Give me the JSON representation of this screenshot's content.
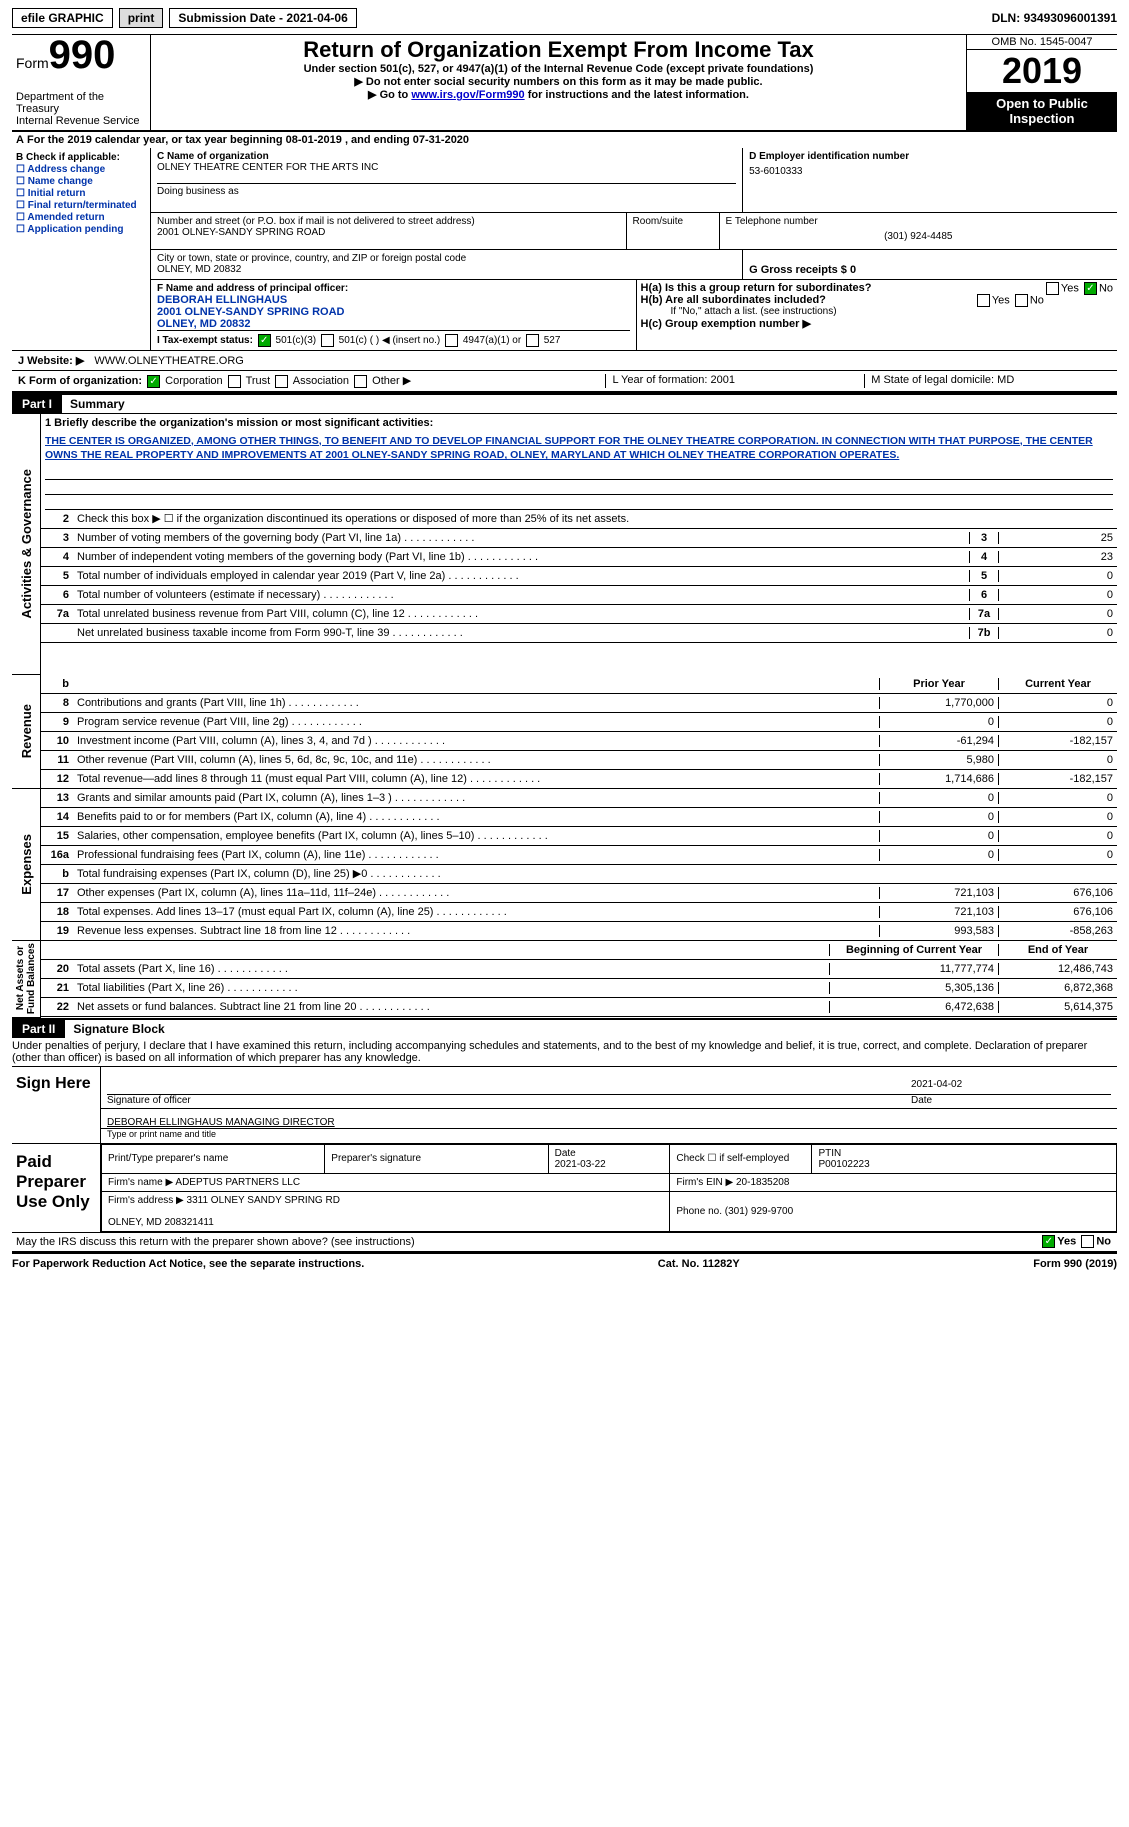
{
  "topbar": {
    "efile": "efile GRAPHIC",
    "print": "print",
    "subdate_label": "Submission Date - ",
    "subdate": "2021-04-06",
    "dln_label": "DLN: ",
    "dln": "93493096001391"
  },
  "header": {
    "form_label": "Form",
    "form_num": "990",
    "dept": "Department of the Treasury\nInternal Revenue Service",
    "title": "Return of Organization Exempt From Income Tax",
    "sub1": "Under section 501(c), 527, or 4947(a)(1) of the Internal Revenue Code (except private foundations)",
    "sub2": "▶ Do not enter social security numbers on this form as it may be made public.",
    "sub3_pre": "▶ Go to ",
    "sub3_link": "www.irs.gov/Form990",
    "sub3_post": " for instructions and the latest information.",
    "omb": "OMB No. 1545-0047",
    "year": "2019",
    "inspect": "Open to Public Inspection"
  },
  "A_year": "For the 2019 calendar year, or tax year beginning 08-01-2019   , and ending 07-31-2020",
  "B": {
    "label": "B Check if applicable:",
    "items": [
      "Address change",
      "Name change",
      "Initial return",
      "Final return/terminated",
      "Amended return",
      "Application pending"
    ]
  },
  "C": {
    "name_label": "C Name of organization",
    "name": "OLNEY THEATRE CENTER FOR THE ARTS INC",
    "dba_label": "Doing business as",
    "addr_label": "Number and street (or P.O. box if mail is not delivered to street address)",
    "room_label": "Room/suite",
    "addr": "2001 OLNEY-SANDY SPRING ROAD",
    "city_label": "City or town, state or province, country, and ZIP or foreign postal code",
    "city": "OLNEY, MD  20832"
  },
  "D": {
    "label": "D Employer identification number",
    "val": "53-6010333"
  },
  "E": {
    "label": "E Telephone number",
    "val": "(301) 924-4485"
  },
  "G": {
    "label": "G Gross receipts $ 0"
  },
  "F": {
    "label": "F Name and address of principal officer:",
    "name": "DEBORAH ELLINGHAUS",
    "addr1": "2001 OLNEY-SANDY SPRING ROAD",
    "addr2": "OLNEY, MD  20832"
  },
  "H": {
    "Ha": "H(a)  Is this a group return for subordinates?",
    "Hb": "H(b)  Are all subordinates included?",
    "Hb_note": "If \"No,\" attach a list. (see instructions)",
    "Hc": "H(c)  Group exemption number ▶",
    "yes": "Yes",
    "no": "No"
  },
  "I": {
    "label": "I   Tax-exempt status:",
    "opts": [
      "501(c)(3)",
      "501(c) (  ) ◀ (insert no.)",
      "4947(a)(1) or",
      "527"
    ]
  },
  "J": {
    "label": "J   Website: ▶",
    "val": "WWW.OLNEYTHEATRE.ORG",
    "link": "#"
  },
  "K": {
    "label": "K Form of organization:",
    "opts": [
      "Corporation",
      "Trust",
      "Association",
      "Other ▶"
    ]
  },
  "L": {
    "label": "L Year of formation: 2001"
  },
  "M": {
    "label": "M State of legal domicile: MD"
  },
  "part1": {
    "bar": "Part I",
    "title": "Summary"
  },
  "mission_label": "1   Briefly describe the organization's mission or most significant activities:",
  "mission": "THE CENTER IS ORGANIZED, AMONG OTHER THINGS, TO BENEFIT AND TO DEVELOP FINANCIAL SUPPORT FOR THE OLNEY THEATRE CORPORATION. IN CONNECTION WITH THAT PURPOSE, THE CENTER OWNS THE REAL PROPERTY AND IMPROVEMENTS AT 2001 OLNEY-SANDY SPRING ROAD, OLNEY, MARYLAND AT WHICH OLNEY THEATRE CORPORATION OPERATES.",
  "line2": "Check this box ▶ ☐  if the organization discontinued its operations or disposed of more than 25% of its net assets.",
  "vert": {
    "gov": "Activities & Governance",
    "rev": "Revenue",
    "exp": "Expenses",
    "net": "Net Assets or\nFund Balances"
  },
  "table1": [
    {
      "n": "3",
      "d": "Number of voting members of the governing body (Part VI, line 1a)",
      "c": "3",
      "v": "25"
    },
    {
      "n": "4",
      "d": "Number of independent voting members of the governing body (Part VI, line 1b)",
      "c": "4",
      "v": "23"
    },
    {
      "n": "5",
      "d": "Total number of individuals employed in calendar year 2019 (Part V, line 2a)",
      "c": "5",
      "v": "0"
    },
    {
      "n": "6",
      "d": "Total number of volunteers (estimate if necessary)",
      "c": "6",
      "v": "0"
    },
    {
      "n": "7a",
      "d": "Total unrelated business revenue from Part VIII, column (C), line 12",
      "c": "7a",
      "v": "0"
    },
    {
      "n": "",
      "d": "Net unrelated business taxable income from Form 990-T, line 39",
      "c": "7b",
      "v": "0"
    }
  ],
  "cols": {
    "prior": "Prior Year",
    "curr": "Current Year",
    "beg": "Beginning of Current Year",
    "end": "End of Year"
  },
  "revenue": [
    {
      "n": "8",
      "d": "Contributions and grants (Part VIII, line 1h)",
      "p": "1,770,000",
      "c": "0"
    },
    {
      "n": "9",
      "d": "Program service revenue (Part VIII, line 2g)",
      "p": "0",
      "c": "0"
    },
    {
      "n": "10",
      "d": "Investment income (Part VIII, column (A), lines 3, 4, and 7d )",
      "p": "-61,294",
      "c": "-182,157"
    },
    {
      "n": "11",
      "d": "Other revenue (Part VIII, column (A), lines 5, 6d, 8c, 9c, 10c, and 11e)",
      "p": "5,980",
      "c": "0"
    },
    {
      "n": "12",
      "d": "Total revenue—add lines 8 through 11 (must equal Part VIII, column (A), line 12)",
      "p": "1,714,686",
      "c": "-182,157"
    }
  ],
  "expenses": [
    {
      "n": "13",
      "d": "Grants and similar amounts paid (Part IX, column (A), lines 1–3 )",
      "p": "0",
      "c": "0"
    },
    {
      "n": "14",
      "d": "Benefits paid to or for members (Part IX, column (A), line 4)",
      "p": "0",
      "c": "0"
    },
    {
      "n": "15",
      "d": "Salaries, other compensation, employee benefits (Part IX, column (A), lines 5–10)",
      "p": "0",
      "c": "0"
    },
    {
      "n": "16a",
      "d": "Professional fundraising fees (Part IX, column (A), line 11e)",
      "p": "0",
      "c": "0"
    },
    {
      "n": "b",
      "d": "Total fundraising expenses (Part IX, column (D), line 25) ▶0",
      "p": "",
      "c": "",
      "grey": true
    },
    {
      "n": "17",
      "d": "Other expenses (Part IX, column (A), lines 11a–11d, 11f–24e)",
      "p": "721,103",
      "c": "676,106"
    },
    {
      "n": "18",
      "d": "Total expenses. Add lines 13–17 (must equal Part IX, column (A), line 25)",
      "p": "721,103",
      "c": "676,106"
    },
    {
      "n": "19",
      "d": "Revenue less expenses. Subtract line 18 from line 12",
      "p": "993,583",
      "c": "-858,263"
    }
  ],
  "netassets": [
    {
      "n": "20",
      "d": "Total assets (Part X, line 16)",
      "p": "11,777,774",
      "c": "12,486,743"
    },
    {
      "n": "21",
      "d": "Total liabilities (Part X, line 26)",
      "p": "5,305,136",
      "c": "6,872,368"
    },
    {
      "n": "22",
      "d": "Net assets or fund balances. Subtract line 21 from line 20",
      "p": "6,472,638",
      "c": "5,614,375"
    }
  ],
  "part2": {
    "bar": "Part II",
    "title": "Signature Block",
    "decl": "Under penalties of perjury, I declare that I have examined this return, including accompanying schedules and statements, and to the best of my knowledge and belief, it is true, correct, and complete. Declaration of preparer (other than officer) is based on all information of which preparer has any knowledge."
  },
  "sign": {
    "here": "Sign Here",
    "sig_label": "Signature of officer",
    "date_label": "Date",
    "sig_date": "2021-04-02",
    "name": "DEBORAH ELLINGHAUS  MANAGING DIRECTOR",
    "name_label": "Type or print name and title"
  },
  "paid": {
    "label": "Paid Preparer Use Only",
    "h1": "Print/Type preparer's name",
    "h2": "Preparer's signature",
    "h3_l": "Date",
    "h3": "2021-03-22",
    "h4": "Check ☐ if self-employed",
    "h5_l": "PTIN",
    "h5": "P00102223",
    "firm_l": "Firm's name   ▶",
    "firm": "ADEPTUS PARTNERS LLC",
    "ein_l": "Firm's EIN ▶",
    "ein": "20-1835208",
    "addr_l": "Firm's address ▶",
    "addr": "3311 OLNEY SANDY SPRING RD\n\nOLNEY, MD  208321411",
    "phone_l": "Phone no.",
    "phone": "(301) 929-9700"
  },
  "discuss": "May the IRS discuss this return with the preparer shown above? (see instructions)",
  "footer": {
    "left": "For Paperwork Reduction Act Notice, see the separate instructions.",
    "mid": "Cat. No. 11282Y",
    "right": "Form 990 (2019)"
  }
}
